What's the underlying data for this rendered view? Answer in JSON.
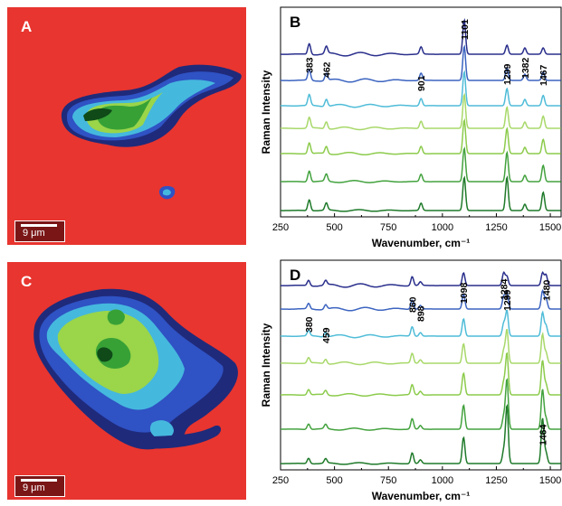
{
  "panels": [
    {
      "letter": "A",
      "scalebar": "9 μm"
    },
    {
      "letter": "B"
    },
    {
      "letter": "C",
      "scalebar": "9 μm"
    },
    {
      "letter": "D"
    }
  ],
  "colors": {
    "background_red": "#e8352f",
    "dark_navy": "#1f2a7a",
    "blue": "#2f52c4",
    "cyan": "#45b8de",
    "light_green": "#9ad54a",
    "green": "#37a136",
    "dark_green": "#0f4a18",
    "scalebar_fill": "#7a1616"
  },
  "chart_data": [
    {
      "panel": "B",
      "type": "line",
      "xlabel": "Wavenumber, cm⁻¹",
      "ylabel": "Raman Intensity",
      "xlim": [
        250,
        1550
      ],
      "xticks": [
        250,
        500,
        750,
        1000,
        1250,
        1500
      ],
      "series_colors": [
        "#1f7a2a",
        "#43a23e",
        "#8ccb4c",
        "#a8d86a",
        "#4fbcd8",
        "#3c64c0",
        "#2a2f8c"
      ],
      "peak_labels": [
        "383",
        "462",
        "901",
        "1101",
        "1299",
        "1382",
        "1467"
      ],
      "peaks": [
        {
          "label": "383",
          "x": 383
        },
        {
          "label": "462",
          "x": 462
        },
        {
          "label": "901",
          "x": 901
        },
        {
          "label": "1101",
          "x": 1101
        },
        {
          "label": "1299",
          "x": 1299
        },
        {
          "label": "1382",
          "x": 1382
        },
        {
          "label": "1467",
          "x": 1467
        }
      ]
    },
    {
      "panel": "D",
      "type": "line",
      "xlabel": "Wavenumber, cm⁻¹",
      "ylabel": "Raman Intensity",
      "xlim": [
        250,
        1550
      ],
      "xticks": [
        250,
        500,
        750,
        1000,
        1250,
        1500
      ],
      "series_colors": [
        "#1f7a2a",
        "#43a23e",
        "#8ccb4c",
        "#a8d86a",
        "#4fbcd8",
        "#3c64c0",
        "#2a2f8c"
      ],
      "peak_labels": [
        "380",
        "459",
        "860",
        "898",
        "1098",
        "1284",
        "1299",
        "1480",
        "1464"
      ],
      "peaks": [
        {
          "label": "380",
          "x": 380
        },
        {
          "label": "459",
          "x": 459
        },
        {
          "label": "860",
          "x": 860
        },
        {
          "label": "898",
          "x": 898
        },
        {
          "label": "1098",
          "x": 1098
        },
        {
          "label": "1284",
          "x": 1284
        },
        {
          "label": "1299",
          "x": 1299
        },
        {
          "label": "1480",
          "x": 1480
        },
        {
          "label": "1464",
          "x": 1464
        }
      ]
    }
  ]
}
